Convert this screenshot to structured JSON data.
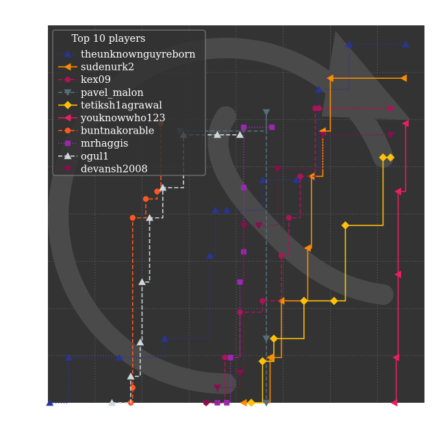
{
  "chart_data": {
    "type": "line",
    "style": "step",
    "background_color": "#333333",
    "grid": true,
    "legend": {
      "title": "Top 10 players",
      "placement": "top-left"
    },
    "watermark": "circular-arrow-logo",
    "xlim": [
      0,
      1
    ],
    "ylim": [
      0,
      1
    ],
    "series": [
      {
        "name": "theunknownguyreborn",
        "color": "#283593",
        "linestyle": "dotted",
        "marker": "triangle-up",
        "x": [
          0.005,
          0.055,
          0.19,
          0.31,
          0.43,
          0.445,
          0.475,
          0.57,
          0.66,
          0.72,
          0.8,
          0.95
        ],
        "y": [
          0.0,
          0.12,
          0.12,
          0.17,
          0.39,
          0.51,
          0.51,
          0.59,
          0.59,
          0.83,
          0.95,
          0.95
        ]
      },
      {
        "name": "sudenurk2",
        "color": "#FB8C00",
        "linestyle": "solid",
        "marker": "triangle-left",
        "x": [
          0.52,
          0.59,
          0.62,
          0.69,
          0.7,
          0.73,
          0.75,
          0.945
        ],
        "y": [
          0.0,
          0.12,
          0.27,
          0.41,
          0.6,
          0.72,
          0.86,
          0.86
        ]
      },
      {
        "name": "kex09",
        "color": "#AD1457",
        "linestyle": "dashed",
        "marker": "circle",
        "x": [
          0.42,
          0.47,
          0.51,
          0.57,
          0.62,
          0.64,
          0.67,
          0.71,
          0.72,
          0.91
        ],
        "y": [
          0.0,
          0.12,
          0.24,
          0.27,
          0.39,
          0.49,
          0.6,
          0.78,
          0.78,
          0.78
        ]
      },
      {
        "name": "pavel_malon",
        "color": "#546E7A",
        "linestyle": "dashed",
        "marker": "triangle-down",
        "x": [
          0.35,
          0.58,
          0.58,
          0.58
        ],
        "y": [
          0.72,
          0.77,
          0.17,
          0.0
        ]
      },
      {
        "name": "tetiksh1agrawal",
        "color": "#FFC107",
        "linestyle": "solid",
        "marker": "diamond",
        "x": [
          0.54,
          0.57,
          0.6,
          0.68,
          0.76,
          0.79,
          0.89,
          0.91
        ],
        "y": [
          0.0,
          0.11,
          0.17,
          0.27,
          0.27,
          0.47,
          0.65,
          0.65
        ]
      },
      {
        "name": "youknowwho123",
        "color": "#E91E63",
        "linestyle": "solid",
        "marker": "triangle-left",
        "x": [
          0.92,
          0.925,
          0.93,
          0.93,
          0.95
        ],
        "y": [
          0.0,
          0.12,
          0.34,
          0.56,
          0.74
        ]
      },
      {
        "name": "buntnakorable",
        "color": "#FF5722",
        "linestyle": "dashed",
        "marker": "circle",
        "x": [
          0.22,
          0.225,
          0.225,
          0.26,
          0.29,
          0.3,
          0.3
        ],
        "y": [
          0.0,
          0.04,
          0.49,
          0.54,
          0.56,
          0.74,
          0.74
        ]
      },
      {
        "name": "mrhaggis",
        "color": "#9C27B0",
        "linestyle": "dotted",
        "marker": "square",
        "x": [
          0.45,
          0.475,
          0.485,
          0.51,
          0.52,
          0.52,
          0.52,
          0.595
        ],
        "y": [
          0.0,
          0.0,
          0.12,
          0.32,
          0.4,
          0.57,
          0.73,
          0.73
        ]
      },
      {
        "name": "ogul1",
        "color": "#CFD8DC",
        "linestyle": "dashed",
        "marker": "triangle-up",
        "x": [
          0.17,
          0.22,
          0.245,
          0.25,
          0.27,
          0.305,
          0.36,
          0.45,
          0.51
        ],
        "y": [
          0.0,
          0.07,
          0.16,
          0.32,
          0.49,
          0.57,
          0.71,
          0.71,
          0.71
        ]
      },
      {
        "name": "devansh2008",
        "color": "#880E4F",
        "linestyle": "dotted",
        "marker": "triangle-down",
        "x": [
          0.42,
          0.45,
          0.51,
          0.52,
          0.56,
          0.61,
          0.73,
          0.91
        ],
        "y": [
          0.0,
          0.04,
          0.08,
          0.47,
          0.47,
          0.62,
          0.71,
          0.71
        ]
      }
    ]
  }
}
